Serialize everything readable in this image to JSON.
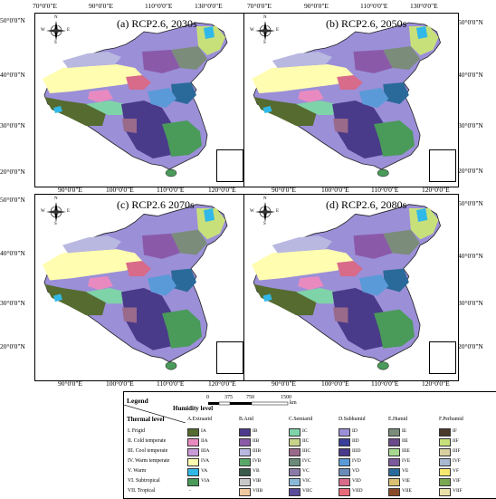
{
  "axes": {
    "top_lon": [
      "70°0'0\"E",
      "90°0'0\"E",
      "110°0'0\"E",
      "130°0'0\"E"
    ],
    "bottom_lon": [
      "90°0'0\"E",
      "100°0'0\"E",
      "110°0'0\"E",
      "120°0'0\"E"
    ],
    "lat": [
      "50°0'0\"N",
      "40°0'0\"N",
      "30°0'0\"N",
      "20°0'0\"N"
    ]
  },
  "panels": [
    {
      "title": "(a) RCP2.6, 2030s"
    },
    {
      "title": "(b) RCP2.6, 2050s"
    },
    {
      "title": "(c) RCP2.6 2070s"
    },
    {
      "title": "(d) RCP2.6, 2080s"
    }
  ],
  "compass": {
    "n": "N",
    "s": "S",
    "e": "E",
    "w": "W"
  },
  "legend": {
    "title": "Legend",
    "humidity_level": "Humidity level",
    "thermal_level": "Thermal level",
    "scale": {
      "ticks": [
        "0",
        "375",
        "750",
        "1500"
      ],
      "unit": "km"
    },
    "humidity_columns": [
      "A.Extraarid",
      "B.Arid",
      "C.Semiarid",
      "D.Subhumid",
      "E.Humid",
      "F.Perhumid"
    ],
    "rows": [
      {
        "label": "I. Frigid",
        "codes": [
          "IA",
          "IB",
          "IC",
          "ID",
          "IE",
          "IF"
        ],
        "colors": [
          "#556b2f",
          "#4b3a8c",
          "#7fd3a8",
          "#9b8fd8",
          "#7b8c7b",
          "#4a3a2a"
        ]
      },
      {
        "label": "II. Cold temperate",
        "codes": [
          "IIA",
          "IIB",
          "IIC",
          "IID",
          "IIE",
          "IIF"
        ],
        "colors": [
          "#e88ac0",
          "#8a5aa8",
          "#c9d28a",
          "#3a3f9a",
          "#6a4a8a",
          "#c8e07a"
        ]
      },
      {
        "label": "III. Cool temperate",
        "codes": [
          "IIIA",
          "IIIB",
          "IIIC",
          "IIID",
          "IIIE",
          "IIIF"
        ],
        "colors": [
          "#c89ad8",
          "#b8b8e0",
          "#9a6a8a",
          "#4a3a8a",
          "#a8d890",
          "#d8d0a0"
        ]
      },
      {
        "label": "IV. Warm temperate",
        "codes": [
          "IVA",
          "IVB",
          "IVC",
          "IVD",
          "IVE",
          "IVF"
        ],
        "colors": [
          "#fffdb0",
          "#5aa868",
          "#6a8a7a",
          "#5a9ad8",
          "#7a5a9a",
          "#a8b8d0"
        ]
      },
      {
        "label": "V. Warm",
        "codes": [
          "VA",
          "VB",
          "VC",
          "VD",
          "VE",
          "VF"
        ],
        "colors": [
          "#30b8e8",
          "#3a5a4a",
          "#8a7aa8",
          "#6a8ab8",
          "#2a6a9a",
          "#f8e870"
        ]
      },
      {
        "label": "VI. Subtropical",
        "codes": [
          "VIA",
          "VIB",
          "VIC",
          "VID",
          "VIE",
          "VIF"
        ],
        "colors": [
          "#4a9a5a",
          "#c8c8c8",
          "#8ab8d8",
          "#d86a8a",
          "#d8c070",
          "#7aa850"
        ]
      },
      {
        "label": "VII. Tropical",
        "codes": [
          "-",
          "VIIB",
          "VIIC",
          "VIID",
          "VIIE",
          "VIIF"
        ],
        "colors": [
          "",
          "#f0c8a0",
          "#5a4a9a",
          "#e86a7a",
          "#8a4a2a",
          "#e8e0a8"
        ]
      }
    ]
  }
}
